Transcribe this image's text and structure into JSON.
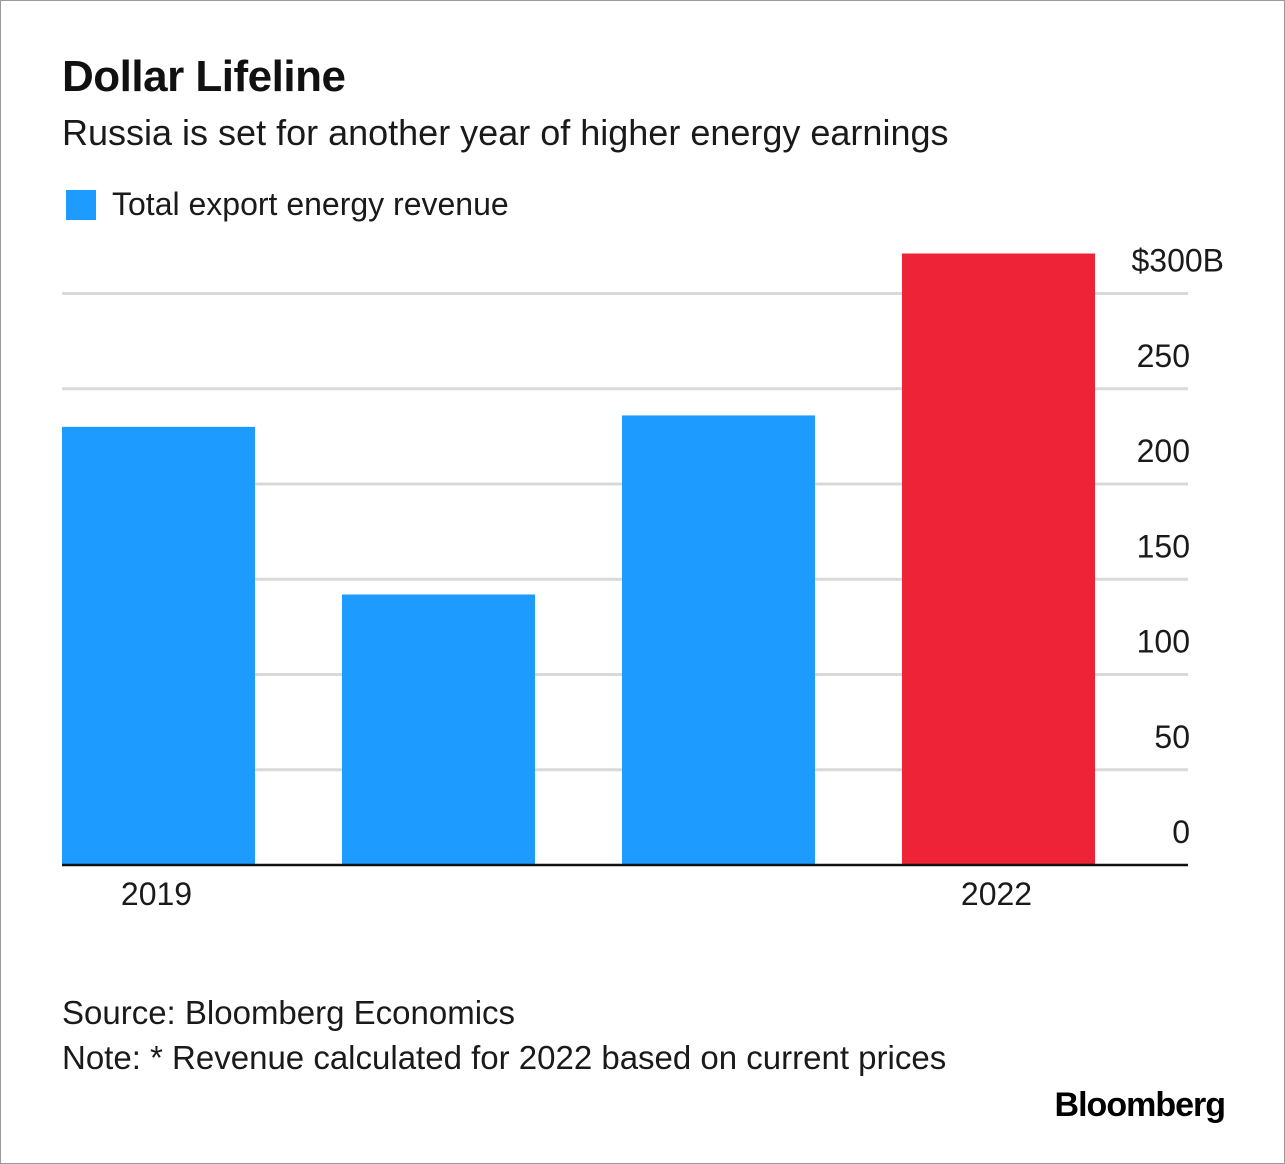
{
  "header": {
    "title": "Dollar Lifeline",
    "subtitle": "Russia is set for another year of higher energy earnings"
  },
  "legend": {
    "label": "Total export energy revenue",
    "color": "#1e9bff"
  },
  "chart_data": {
    "type": "bar",
    "categories": [
      "2019",
      "",
      "",
      "2022"
    ],
    "series": [
      {
        "name": "Total export energy revenue",
        "values": [
          230,
          142,
          236,
          321
        ]
      }
    ],
    "bar_colors": [
      "#1e9bff",
      "#1e9bff",
      "#1e9bff",
      "#ee2338"
    ],
    "ylim": [
      0,
      300
    ],
    "y_ticks": [
      0,
      50,
      100,
      150,
      200,
      250,
      300
    ],
    "y_tick_labels": [
      "0",
      "50",
      "100",
      "150",
      "200",
      "250",
      "$300B"
    ],
    "y_axis_side": "right",
    "grid": true
  },
  "footer": {
    "source": "Source: Bloomberg Economics",
    "note": "Note: * Revenue calculated for 2022 based on current prices"
  },
  "brand": "Bloomberg"
}
